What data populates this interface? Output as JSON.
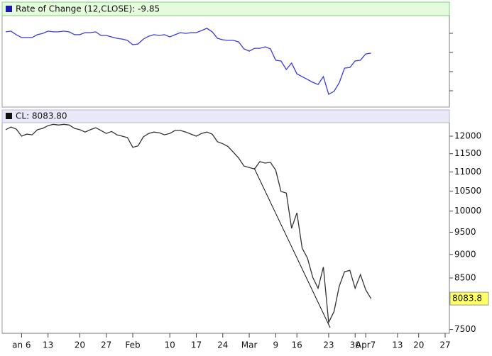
{
  "chart_data": [
    {
      "type": "line",
      "title": "Rate of Change (12,CLOSE): -9.85",
      "ylim": [
        -38,
        10
      ],
      "series": [
        {
          "name": "Rate of Change",
          "color": "#3a3ae0",
          "values": [
            1.4,
            1.8,
            -0.1,
            -1.6,
            -1.6,
            -1.6,
            -0.1,
            0.6,
            1.8,
            1.4,
            1.4,
            1.8,
            1.4,
            -0.1,
            -0.1,
            1.0,
            1.0,
            1.4,
            -0.5,
            -0.5,
            -1.3,
            -2.0,
            -2.4,
            -3.1,
            -5.4,
            -5.0,
            -2.4,
            -0.9,
            -0.1,
            -0.5,
            -0.1,
            -1.3,
            -0.1,
            1.0,
            0.6,
            1.0,
            1.0,
            2.1,
            3.3,
            1.4,
            -2.0,
            -2.8,
            -3.1,
            -3.1,
            -3.9,
            -7.6,
            -8.8,
            -7.3,
            -7.3,
            -6.5,
            -7.6,
            -13.6,
            -14.0,
            -18.5,
            -15.1,
            -20.8,
            -22.3,
            -23.8,
            -25.3,
            -26.4,
            -22.3,
            -31.6,
            -30.1,
            -25.6,
            -17.8,
            -17.4,
            -14.0,
            -13.6,
            -10.3,
            -9.85,
            null,
            null,
            null,
            null,
            null,
            null,
            null,
            null,
            null,
            null,
            null,
            null,
            null,
            null
          ]
        }
      ]
    },
    {
      "type": "line",
      "title": "CL: 8083.80",
      "log_scale": true,
      "ylim": [
        7430,
        12400
      ],
      "yticks": [
        7500,
        8000,
        8500,
        9000,
        9500,
        10000,
        10500,
        11000,
        11500,
        12000
      ],
      "categories": [
        null,
        null,
        null,
        "an 6",
        null,
        null,
        null,
        null,
        "13",
        null,
        null,
        null,
        null,
        null,
        "20",
        null,
        null,
        null,
        null,
        "27",
        null,
        null,
        null,
        null,
        "Feb",
        null,
        null,
        null,
        null,
        null,
        null,
        "10",
        null,
        null,
        null,
        null,
        "17",
        null,
        null,
        null,
        null,
        "24",
        null,
        null,
        null,
        null,
        "Mar",
        null,
        null,
        null,
        null,
        "9",
        null,
        null,
        null,
        "16",
        null,
        null,
        null,
        null,
        null,
        "23",
        null,
        null,
        null,
        null,
        "30",
        null,
        "Apr7",
        null,
        null,
        null,
        null,
        null,
        "13",
        null,
        null,
        null,
        "20",
        null,
        null,
        null,
        null,
        "27"
      ],
      "series": [
        {
          "name": "CL",
          "color": "#333333",
          "values": [
            12190,
            12270,
            12210,
            12000,
            12060,
            12040,
            12190,
            12230,
            12310,
            12350,
            12330,
            12350,
            12330,
            12230,
            12190,
            12120,
            12190,
            12250,
            12170,
            12080,
            12140,
            12040,
            12000,
            11960,
            11680,
            11720,
            11980,
            12080,
            12120,
            12100,
            12040,
            12080,
            12170,
            12170,
            12120,
            12060,
            12000,
            12080,
            12120,
            12060,
            11840,
            11780,
            11700,
            11540,
            11380,
            11160,
            11120,
            11080,
            11280,
            11240,
            11260,
            11050,
            10490,
            10450,
            9590,
            9960,
            9140,
            8920,
            8510,
            8290,
            8730,
            7630,
            7830,
            8330,
            8630,
            8660,
            8290,
            8570,
            8260,
            8083.8,
            null,
            null,
            null,
            null,
            null,
            null,
            null,
            null,
            null,
            null,
            null,
            null,
            null,
            null
          ]
        }
      ]
    }
  ]
}
